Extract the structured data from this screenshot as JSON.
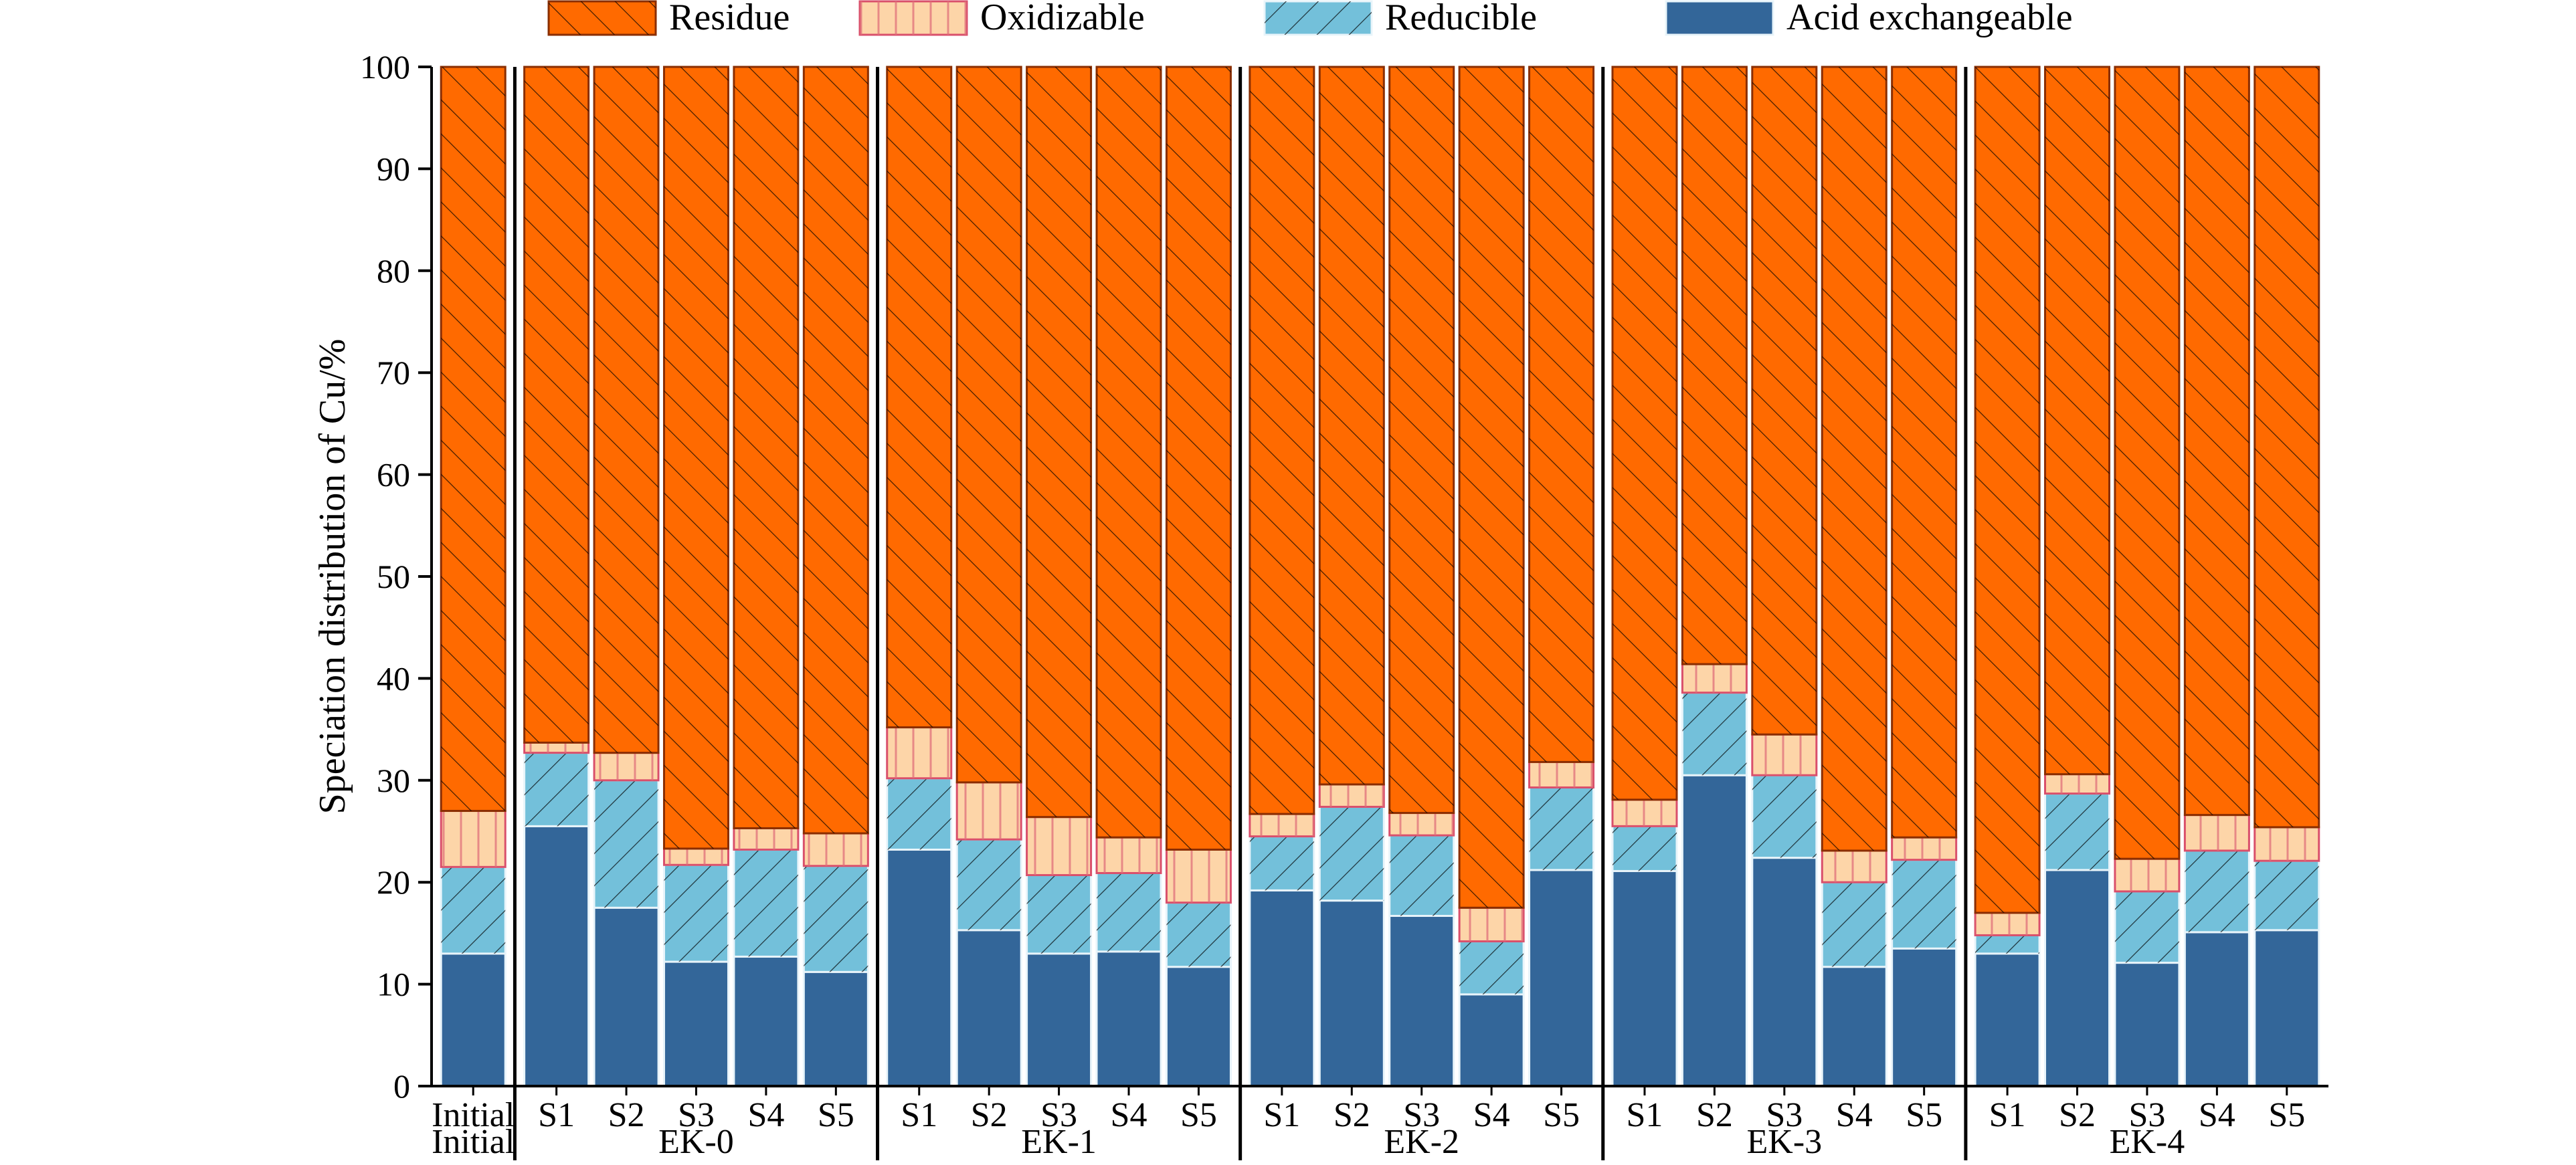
{
  "chart_data": {
    "type": "bar",
    "stacked": true,
    "title": "",
    "xlabel": "",
    "ylabel": "Speciation distribution of Cu/%",
    "ylim": [
      0,
      100
    ],
    "yticks": [
      "0",
      "10",
      "20",
      "30",
      "40",
      "50",
      "60",
      "70",
      "80",
      "90",
      "100"
    ],
    "grid": false,
    "legend_position": "top",
    "series": [
      {
        "name": "Acid exchangeable",
        "color": "#336699",
        "pattern": "solid",
        "values": [
          13.0,
          25.5,
          17.5,
          12.2,
          12.7,
          11.2,
          23.2,
          15.3,
          13.0,
          13.2,
          11.7,
          19.2,
          18.2,
          16.7,
          9.0,
          21.2,
          21.1,
          30.5,
          22.4,
          11.7,
          13.5,
          13.0,
          21.2,
          12.1,
          15.1,
          15.3
        ]
      },
      {
        "name": "Reducible",
        "color": "#73C0DA",
        "pattern": "hatch",
        "values": [
          8.5,
          7.2,
          12.5,
          9.5,
          10.5,
          10.4,
          7.0,
          8.9,
          7.7,
          7.7,
          6.3,
          5.3,
          9.2,
          7.9,
          5.2,
          8.1,
          4.4,
          8.1,
          8.1,
          8.3,
          8.7,
          1.8,
          7.5,
          7.0,
          8.0,
          6.8
        ]
      },
      {
        "name": "Oxidizable",
        "color": "#FDD5A8",
        "pattern": "vertical-lines",
        "values": [
          5.5,
          1.0,
          2.7,
          1.6,
          2.1,
          3.2,
          5.0,
          5.6,
          5.7,
          3.5,
          5.2,
          2.2,
          2.2,
          2.2,
          3.3,
          2.5,
          2.6,
          2.8,
          4.0,
          3.1,
          2.2,
          2.2,
          1.9,
          3.2,
          3.5,
          3.3
        ]
      },
      {
        "name": "Residue",
        "color": "#FF6A00",
        "pattern": "hatch",
        "values": [
          73.0,
          66.3,
          67.3,
          76.7,
          74.7,
          75.2,
          64.8,
          70.2,
          73.6,
          75.6,
          76.8,
          73.3,
          70.4,
          73.2,
          82.5,
          68.2,
          71.9,
          58.6,
          65.5,
          76.9,
          75.6,
          83.0,
          69.4,
          77.7,
          73.4,
          74.6
        ]
      }
    ],
    "categories": [
      "Initial",
      "S1",
      "S2",
      "S3",
      "S4",
      "S5",
      "S1",
      "S2",
      "S3",
      "S4",
      "S5",
      "S1",
      "S2",
      "S3",
      "S4",
      "S5",
      "S1",
      "S2",
      "S3",
      "S4",
      "S5",
      "S1",
      "S2",
      "S3",
      "S4",
      "S5"
    ],
    "groups": [
      {
        "label": "Initial",
        "count": 1
      },
      {
        "label": "EK-0",
        "count": 5
      },
      {
        "label": "EK-1",
        "count": 5
      },
      {
        "label": "EK-2",
        "count": 5
      },
      {
        "label": "EK-3",
        "count": 5
      },
      {
        "label": "EK-4",
        "count": 5
      }
    ],
    "legend": [
      {
        "label": "Residue",
        "series": 3
      },
      {
        "label": "Oxidizable",
        "series": 2
      },
      {
        "label": "Reducible",
        "series": 1
      },
      {
        "label": "Acid exchangeable",
        "series": 0
      }
    ]
  }
}
